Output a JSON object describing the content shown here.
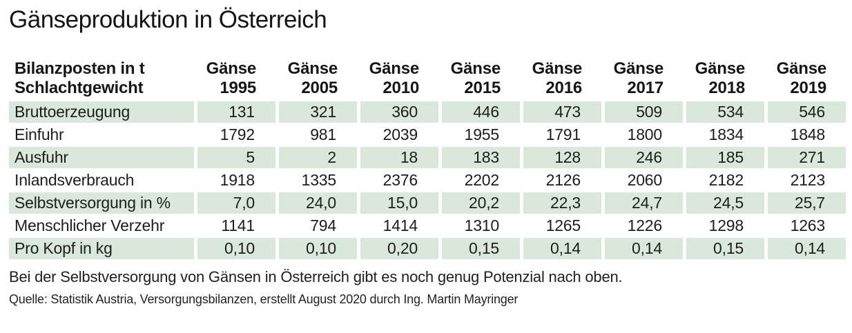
{
  "title": "Gänseproduktion in Österreich",
  "chart_data": {
    "type": "table",
    "row_header": [
      "Bilanzposten in t",
      "Schlachtgewicht"
    ],
    "columns": [
      {
        "label": "Gänse",
        "year": "1995"
      },
      {
        "label": "Gänse",
        "year": "2005"
      },
      {
        "label": "Gänse",
        "year": "2010"
      },
      {
        "label": "Gänse",
        "year": "2015"
      },
      {
        "label": "Gänse",
        "year": "2016"
      },
      {
        "label": "Gänse",
        "year": "2017"
      },
      {
        "label": "Gänse",
        "year": "2018"
      },
      {
        "label": "Gänse",
        "year": "2019"
      }
    ],
    "rows": [
      {
        "label": "Bruttoerzeugung",
        "values": [
          "131",
          "321",
          "360",
          "446",
          "473",
          "509",
          "534",
          "546"
        ]
      },
      {
        "label": "Einfuhr",
        "values": [
          "1792",
          "981",
          "2039",
          "1955",
          "1791",
          "1800",
          "1834",
          "1848"
        ]
      },
      {
        "label": "Ausfuhr",
        "values": [
          "5",
          "2",
          "18",
          "183",
          "128",
          "246",
          "185",
          "271"
        ]
      },
      {
        "label": "Inlandsverbrauch",
        "values": [
          "1918",
          "1335",
          "2376",
          "2202",
          "2126",
          "2060",
          "2182",
          "2123"
        ]
      },
      {
        "label": "Selbstversorgung in %",
        "values": [
          "7,0",
          "24,0",
          "15,0",
          "20,2",
          "22,3",
          "24,7",
          "24,5",
          "25,7"
        ]
      },
      {
        "label": "Menschlicher Verzehr",
        "values": [
          "1141",
          "794",
          "1414",
          "1310",
          "1265",
          "1226",
          "1298",
          "1263"
        ]
      },
      {
        "label": "Pro Kopf in kg",
        "values": [
          "0,10",
          "0,10",
          "0,20",
          "0,15",
          "0,14",
          "0,14",
          "0,15",
          "0,14"
        ]
      }
    ]
  },
  "caption": "Bei der Selbstversorgung von Gänsen in Österreich gibt es noch genug Potenzial nach oben.",
  "source": "Quelle: Statistik Austria, Versorgungsbilanzen, erstellt August 2020 durch Ing. Martin Mayringer",
  "colors": {
    "band": "#d9e8db",
    "text": "#1d1d1b"
  }
}
